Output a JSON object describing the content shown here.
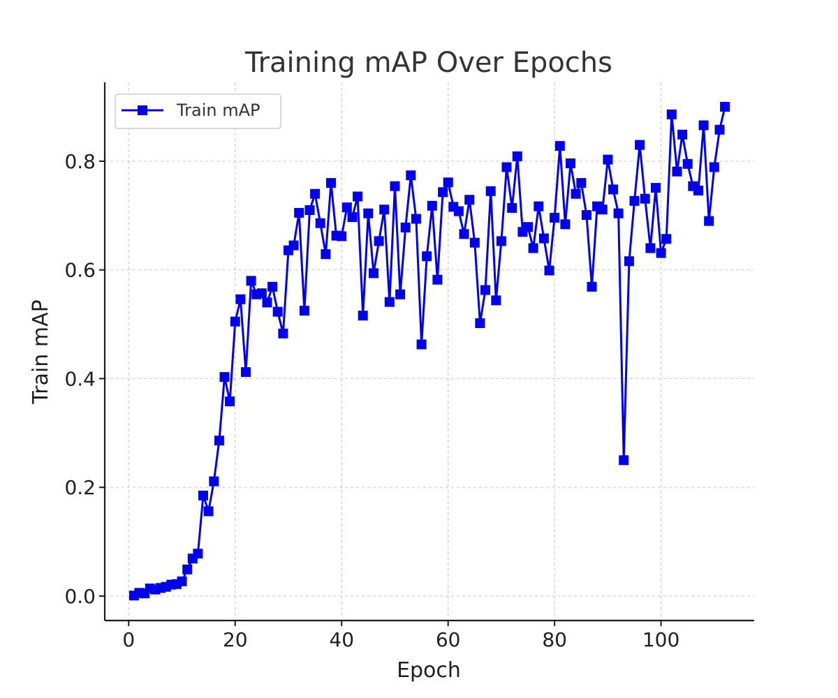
{
  "chart_data": {
    "type": "line",
    "title": "Training mAP Over Epochs",
    "xlabel": "Epoch",
    "ylabel": "Train mAP",
    "xlim": [
      -4.5,
      117.5
    ],
    "ylim": [
      -0.045,
      0.945
    ],
    "xticks": [
      0,
      20,
      40,
      60,
      80,
      100
    ],
    "yticks": [
      0.0,
      0.2,
      0.4,
      0.6,
      0.8
    ],
    "xtick_labels": [
      "0",
      "20",
      "40",
      "60",
      "80",
      "100"
    ],
    "ytick_labels": [
      "0.0",
      "0.2",
      "0.4",
      "0.6",
      "0.8"
    ],
    "grid": true,
    "legend_position": "top-left",
    "series": [
      {
        "name": "Train mAP",
        "color": "#0000ee",
        "marker": "square",
        "x": [
          1,
          2,
          3,
          4,
          5,
          6,
          7,
          8,
          9,
          10,
          11,
          12,
          13,
          14,
          15,
          16,
          17,
          18,
          19,
          20,
          21,
          22,
          23,
          24,
          25,
          26,
          27,
          28,
          29,
          30,
          31,
          32,
          33,
          34,
          35,
          36,
          37,
          38,
          39,
          40,
          41,
          42,
          43,
          44,
          45,
          46,
          47,
          48,
          49,
          50,
          51,
          52,
          53,
          54,
          55,
          56,
          57,
          58,
          59,
          60,
          61,
          62,
          63,
          64,
          65,
          66,
          67,
          68,
          69,
          70,
          71,
          72,
          73,
          74,
          75,
          76,
          77,
          78,
          79,
          80,
          81,
          82,
          83,
          84,
          85,
          86,
          87,
          88,
          89,
          90,
          91,
          92,
          93,
          94,
          95,
          96,
          97,
          98,
          99,
          100,
          101,
          102,
          103,
          104,
          105,
          106,
          107,
          108,
          109,
          110,
          111,
          112
        ],
        "y": [
          0.001,
          0.006,
          0.005,
          0.014,
          0.012,
          0.015,
          0.017,
          0.021,
          0.022,
          0.027,
          0.049,
          0.069,
          0.078,
          0.185,
          0.156,
          0.211,
          0.286,
          0.403,
          0.358,
          0.505,
          0.546,
          0.412,
          0.58,
          0.555,
          0.557,
          0.54,
          0.569,
          0.523,
          0.483,
          0.636,
          0.645,
          0.705,
          0.525,
          0.71,
          0.74,
          0.686,
          0.629,
          0.76,
          0.663,
          0.662,
          0.715,
          0.697,
          0.735,
          0.516,
          0.704,
          0.594,
          0.653,
          0.711,
          0.541,
          0.754,
          0.555,
          0.678,
          0.774,
          0.694,
          0.463,
          0.625,
          0.718,
          0.582,
          0.743,
          0.761,
          0.716,
          0.708,
          0.666,
          0.729,
          0.65,
          0.502,
          0.563,
          0.745,
          0.544,
          0.653,
          0.789,
          0.714,
          0.809,
          0.67,
          0.679,
          0.64,
          0.717,
          0.658,
          0.599,
          0.696,
          0.828,
          0.684,
          0.796,
          0.74,
          0.76,
          0.701,
          0.569,
          0.717,
          0.711,
          0.803,
          0.748,
          0.704,
          0.25,
          0.616,
          0.727,
          0.83,
          0.731,
          0.64,
          0.751,
          0.631,
          0.657,
          0.886,
          0.781,
          0.849,
          0.795,
          0.754,
          0.746,
          0.866,
          0.69,
          0.789,
          0.858,
          0.9
        ]
      }
    ]
  }
}
